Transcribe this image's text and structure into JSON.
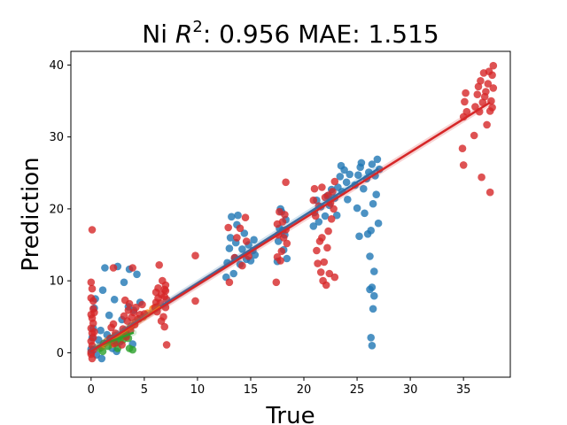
{
  "chart_data": {
    "type": "scatter",
    "title_prefix": "Ni ",
    "title_r": "R",
    "title_sup": "2",
    "title_suffix": ": 0.956 MAE: 1.515",
    "xlabel": "True",
    "ylabel": "Prediction",
    "xlim": [
      -1.9,
      39.4
    ],
    "ylim": [
      -3.4,
      41.9
    ],
    "xticks": [
      0,
      5,
      10,
      15,
      20,
      25,
      30,
      35
    ],
    "yticks": [
      0,
      10,
      20,
      30,
      40
    ],
    "grid": false,
    "legend": "none",
    "series": [
      {
        "color": "#1f77b4",
        "points": [
          [
            0,
            0.5
          ],
          [
            0.1,
            2.1
          ],
          [
            0.2,
            3.4
          ],
          [
            0.3,
            6.2
          ],
          [
            0.4,
            7.5
          ],
          [
            0.5,
            -0.3
          ],
          [
            0.7,
            1.8
          ],
          [
            0.9,
            3.1
          ],
          [
            1.1,
            8.7
          ],
          [
            1.3,
            11.8
          ],
          [
            1.5,
            2.5
          ],
          [
            1.7,
            5.2
          ],
          [
            2.0,
            0.6
          ],
          [
            2.2,
            7.4
          ],
          [
            2.5,
            12.0
          ],
          [
            2.7,
            1.5
          ],
          [
            2.9,
            4.6
          ],
          [
            3.1,
            9.8
          ],
          [
            3.3,
            2.8
          ],
          [
            3.5,
            6.4
          ],
          [
            3.6,
            11.6
          ],
          [
            3.8,
            3.7
          ],
          [
            4.0,
            5.9
          ],
          [
            4.3,
            10.9
          ],
          [
            4.6,
            7.0
          ],
          [
            1.0,
            -0.8
          ],
          [
            2.4,
            0.2
          ],
          [
            3.9,
            1.2
          ],
          [
            12.7,
            10.5
          ],
          [
            12.8,
            12.5
          ],
          [
            13.0,
            14.5
          ],
          [
            13.1,
            16.0
          ],
          [
            13.2,
            18.9
          ],
          [
            13.4,
            11.0
          ],
          [
            13.5,
            13.2
          ],
          [
            13.6,
            15.3
          ],
          [
            13.8,
            19.1
          ],
          [
            14.0,
            12.3
          ],
          [
            14.2,
            14.4
          ],
          [
            14.4,
            16.6
          ],
          [
            14.6,
            13.0
          ],
          [
            14.8,
            15.0
          ],
          [
            15.0,
            12.8
          ],
          [
            15.2,
            14.2
          ],
          [
            15.3,
            15.7
          ],
          [
            15.4,
            13.6
          ],
          [
            13.7,
            17.8
          ],
          [
            17.5,
            12.7
          ],
          [
            17.6,
            15.5
          ],
          [
            17.7,
            17.3
          ],
          [
            17.9,
            19.6
          ],
          [
            18.1,
            14.3
          ],
          [
            18.2,
            16.4
          ],
          [
            18.3,
            18.5
          ],
          [
            18.4,
            13.1
          ],
          [
            17.8,
            20.0
          ],
          [
            18.0,
            17.0
          ],
          [
            20.9,
            17.6
          ],
          [
            21.0,
            19.5
          ],
          [
            21.2,
            21.2
          ],
          [
            21.4,
            18.2
          ],
          [
            21.6,
            20.3
          ],
          [
            22.0,
            19.0
          ],
          [
            22.2,
            21.8
          ],
          [
            22.4,
            20.5
          ],
          [
            22.6,
            22.7
          ],
          [
            22.9,
            21.5
          ],
          [
            23.1,
            19.1
          ],
          [
            23.2,
            23.0
          ],
          [
            23.4,
            24.5
          ],
          [
            23.5,
            26.0
          ],
          [
            23.6,
            22.4
          ],
          [
            23.8,
            25.4
          ],
          [
            24.0,
            23.7
          ],
          [
            24.1,
            21.3
          ],
          [
            24.3,
            24.8
          ],
          [
            24.8,
            23.3
          ],
          [
            25.0,
            20.1
          ],
          [
            25.1,
            24.7
          ],
          [
            25.2,
            16.2
          ],
          [
            25.3,
            25.8
          ],
          [
            25.4,
            26.4
          ],
          [
            25.6,
            22.8
          ],
          [
            25.7,
            19.4
          ],
          [
            25.9,
            24.2
          ],
          [
            26.0,
            16.5
          ],
          [
            26.1,
            25.1
          ],
          [
            26.2,
            13.4
          ],
          [
            26.3,
            17.0
          ],
          [
            26.4,
            26.2
          ],
          [
            26.5,
            20.7
          ],
          [
            26.6,
            11.3
          ],
          [
            26.7,
            24.6
          ],
          [
            26.8,
            22.0
          ],
          [
            26.9,
            26.9
          ],
          [
            27.0,
            18.0
          ],
          [
            27.1,
            25.5
          ],
          [
            26.4,
            9.1
          ],
          [
            26.6,
            7.9
          ],
          [
            26.5,
            6.1
          ],
          [
            26.3,
            2.1
          ],
          [
            26.4,
            1.0
          ],
          [
            26.2,
            8.8
          ]
        ]
      },
      {
        "color": "#ff7f0e",
        "points": [
          [
            1.0,
            0.8
          ],
          [
            1.5,
            1.6
          ],
          [
            2.0,
            1.2
          ],
          [
            2.3,
            2.4
          ],
          [
            2.8,
            2.0
          ],
          [
            3.2,
            3.1
          ],
          [
            3.7,
            3.6
          ],
          [
            4.1,
            4.2
          ],
          [
            4.5,
            4.7
          ],
          [
            4.9,
            5.0
          ],
          [
            5.3,
            5.5
          ],
          [
            5.8,
            6.1
          ],
          [
            6.2,
            6.4
          ]
        ]
      },
      {
        "color": "#2ca02c",
        "points": [
          [
            0.8,
            0.6
          ],
          [
            1.2,
            1.3
          ],
          [
            1.6,
            0.9
          ],
          [
            2.0,
            1.7
          ],
          [
            2.4,
            1.4
          ],
          [
            2.7,
            2.3
          ],
          [
            3.0,
            1.8
          ],
          [
            3.3,
            2.5
          ],
          [
            3.6,
            0.6
          ],
          [
            3.9,
            0.4
          ],
          [
            3.5,
            2.0
          ],
          [
            2.5,
            0.6
          ],
          [
            1.9,
            2.0
          ],
          [
            1.1,
            0.2
          ]
        ]
      },
      {
        "color": "#d62728",
        "points": [
          [
            0.1,
            17.1
          ],
          [
            0.0,
            9.8
          ],
          [
            0.1,
            8.9
          ],
          [
            0.0,
            7.6
          ],
          [
            0.2,
            6.1
          ],
          [
            0.0,
            5.3
          ],
          [
            0.1,
            4.8
          ],
          [
            0.2,
            4.1
          ],
          [
            0.0,
            3.4
          ],
          [
            0.1,
            2.7
          ],
          [
            0.2,
            2.1
          ],
          [
            0.0,
            1.6
          ],
          [
            0.1,
            1.0
          ],
          [
            0.2,
            0.4
          ],
          [
            0.0,
            -0.2
          ],
          [
            0.1,
            -0.8
          ],
          [
            0.3,
            5.6
          ],
          [
            0.3,
            2.9
          ],
          [
            0.0,
            0.1
          ],
          [
            0.2,
            7.2
          ],
          [
            1.8,
            2.0
          ],
          [
            1.9,
            3.5
          ],
          [
            2.1,
            4.0
          ],
          [
            2.1,
            11.8
          ],
          [
            2.2,
            1.3
          ],
          [
            2.3,
            2.7
          ],
          [
            2.9,
            1.1
          ],
          [
            3.0,
            3.3
          ],
          [
            3.1,
            5.1
          ],
          [
            3.2,
            7.3
          ],
          [
            3.3,
            2.2
          ],
          [
            3.4,
            4.4
          ],
          [
            3.5,
            5.9
          ],
          [
            3.6,
            6.8
          ],
          [
            3.7,
            3.1
          ],
          [
            3.8,
            4.9
          ],
          [
            3.9,
            11.8
          ],
          [
            4.0,
            5.6
          ],
          [
            4.1,
            3.9
          ],
          [
            4.2,
            6.3
          ],
          [
            4.4,
            4.7
          ],
          [
            4.6,
            5.3
          ],
          [
            4.8,
            6.7
          ],
          [
            5.0,
            5.4
          ],
          [
            6.0,
            6.3
          ],
          [
            6.1,
            7.0
          ],
          [
            6.1,
            8.4
          ],
          [
            6.2,
            5.7
          ],
          [
            6.3,
            7.6
          ],
          [
            6.3,
            9.0
          ],
          [
            6.4,
            12.2
          ],
          [
            6.5,
            6.9
          ],
          [
            6.6,
            8.1
          ],
          [
            6.7,
            10.0
          ],
          [
            6.9,
            3.6
          ],
          [
            6.9,
            8.8
          ],
          [
            7.0,
            6.3
          ],
          [
            7.0,
            9.4
          ],
          [
            7.1,
            1.1
          ],
          [
            7.1,
            7.4
          ],
          [
            6.8,
            5.0
          ],
          [
            6.6,
            4.4
          ],
          [
            6.9,
            7.8
          ],
          [
            7.0,
            8.6
          ],
          [
            9.8,
            13.5
          ],
          [
            9.8,
            7.2
          ],
          [
            12.9,
            17.4
          ],
          [
            13.0,
            9.8
          ],
          [
            13.5,
            13.2
          ],
          [
            13.7,
            16.0
          ],
          [
            14.0,
            17.3
          ],
          [
            14.2,
            12.1
          ],
          [
            14.5,
            18.8
          ],
          [
            14.6,
            15.5
          ],
          [
            14.8,
            13.4
          ],
          [
            17.4,
            9.8
          ],
          [
            17.5,
            13.3
          ],
          [
            17.5,
            17.9
          ],
          [
            17.6,
            16.4
          ],
          [
            17.7,
            19.6
          ],
          [
            17.8,
            12.8
          ],
          [
            17.9,
            14.1
          ],
          [
            18.0,
            18.2
          ],
          [
            18.1,
            16.0
          ],
          [
            18.2,
            19.2
          ],
          [
            18.3,
            23.7
          ],
          [
            18.3,
            17.1
          ],
          [
            18.4,
            15.2
          ],
          [
            20.9,
            21.2
          ],
          [
            21.0,
            22.8
          ],
          [
            21.1,
            19.0
          ],
          [
            21.2,
            14.2
          ],
          [
            21.3,
            12.4
          ],
          [
            21.4,
            20.4
          ],
          [
            21.5,
            15.5
          ],
          [
            21.6,
            11.2
          ],
          [
            21.7,
            16.0
          ],
          [
            21.7,
            23.0
          ],
          [
            21.8,
            10.0
          ],
          [
            21.9,
            12.6
          ],
          [
            22.0,
            21.6
          ],
          [
            22.1,
            9.4
          ],
          [
            22.2,
            14.6
          ],
          [
            22.3,
            21.9
          ],
          [
            22.4,
            11.0
          ],
          [
            22.5,
            20.8
          ],
          [
            22.6,
            18.6
          ],
          [
            22.7,
            22.4
          ],
          [
            22.8,
            20.0
          ],
          [
            22.9,
            10.5
          ],
          [
            22.9,
            23.8
          ],
          [
            22.3,
            16.9
          ],
          [
            34.9,
            28.4
          ],
          [
            35.0,
            26.1
          ],
          [
            35.0,
            32.8
          ],
          [
            35.1,
            34.9
          ],
          [
            35.2,
            36.1
          ],
          [
            35.3,
            33.5
          ],
          [
            36.0,
            30.2
          ],
          [
            36.1,
            34.2
          ],
          [
            36.3,
            35.9
          ],
          [
            36.4,
            37.0
          ],
          [
            36.5,
            33.5
          ],
          [
            36.6,
            37.8
          ],
          [
            36.7,
            24.4
          ],
          [
            36.8,
            34.8
          ],
          [
            36.9,
            38.9
          ],
          [
            37.0,
            35.6
          ],
          [
            37.1,
            36.3
          ],
          [
            37.2,
            31.7
          ],
          [
            37.3,
            37.4
          ],
          [
            37.4,
            39.1
          ],
          [
            37.5,
            22.3
          ],
          [
            37.5,
            33.6
          ],
          [
            37.6,
            35.0
          ],
          [
            37.7,
            38.6
          ],
          [
            37.8,
            36.8
          ],
          [
            37.8,
            39.9
          ],
          [
            37.7,
            34.1
          ]
        ]
      }
    ],
    "fit_lines": [
      {
        "color": "#1f77b4",
        "x": [
          0.0,
          27.0
        ],
        "y": [
          0.3,
          25.6
        ]
      },
      {
        "color": "#ff7f0e",
        "x": [
          1.0,
          6.5
        ],
        "y": [
          0.8,
          6.4
        ]
      },
      {
        "color": "#2ca02c",
        "x": [
          0.5,
          4.0
        ],
        "y": [
          0.8,
          2.8
        ]
      },
      {
        "color": "#d62728",
        "x": [
          0.0,
          37.5
        ],
        "y": [
          0.2,
          34.8
        ]
      }
    ]
  }
}
